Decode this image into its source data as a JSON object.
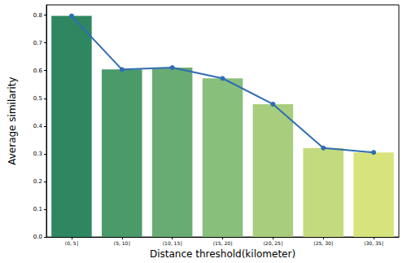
{
  "chart_data": {
    "type": "bar",
    "x_label": "Distance threshold(kilometer)",
    "y_label": "Average similarity",
    "categories": [
      "(0, 5]",
      "(5, 10]",
      "(10, 15]",
      "(15, 20]",
      "(20, 25]",
      "(25, 30]",
      "(30, 35]"
    ],
    "series": [
      {
        "type": "bar",
        "values": [
          0.797,
          0.604,
          0.611,
          0.572,
          0.479,
          0.321,
          0.305
        ],
        "colors": [
          "#2e8760",
          "#4a9a6a",
          "#69ac73",
          "#88bf7b",
          "#a7cd7d",
          "#c3da7e",
          "#d7e47c"
        ]
      },
      {
        "type": "line",
        "values": [
          0.797,
          0.604,
          0.611,
          0.572,
          0.479,
          0.321,
          0.305
        ],
        "color": "#2f6db5",
        "marker": "circle",
        "line_style": "solid"
      }
    ],
    "ylim": [
      0,
      0.837
    ],
    "yticks": [
      {
        "value": 0,
        "label": "0.0"
      },
      0.1,
      0.2,
      0.3,
      0.4,
      0.5,
      0.6,
      0.7,
      0.8
    ],
    "grid": false
  }
}
